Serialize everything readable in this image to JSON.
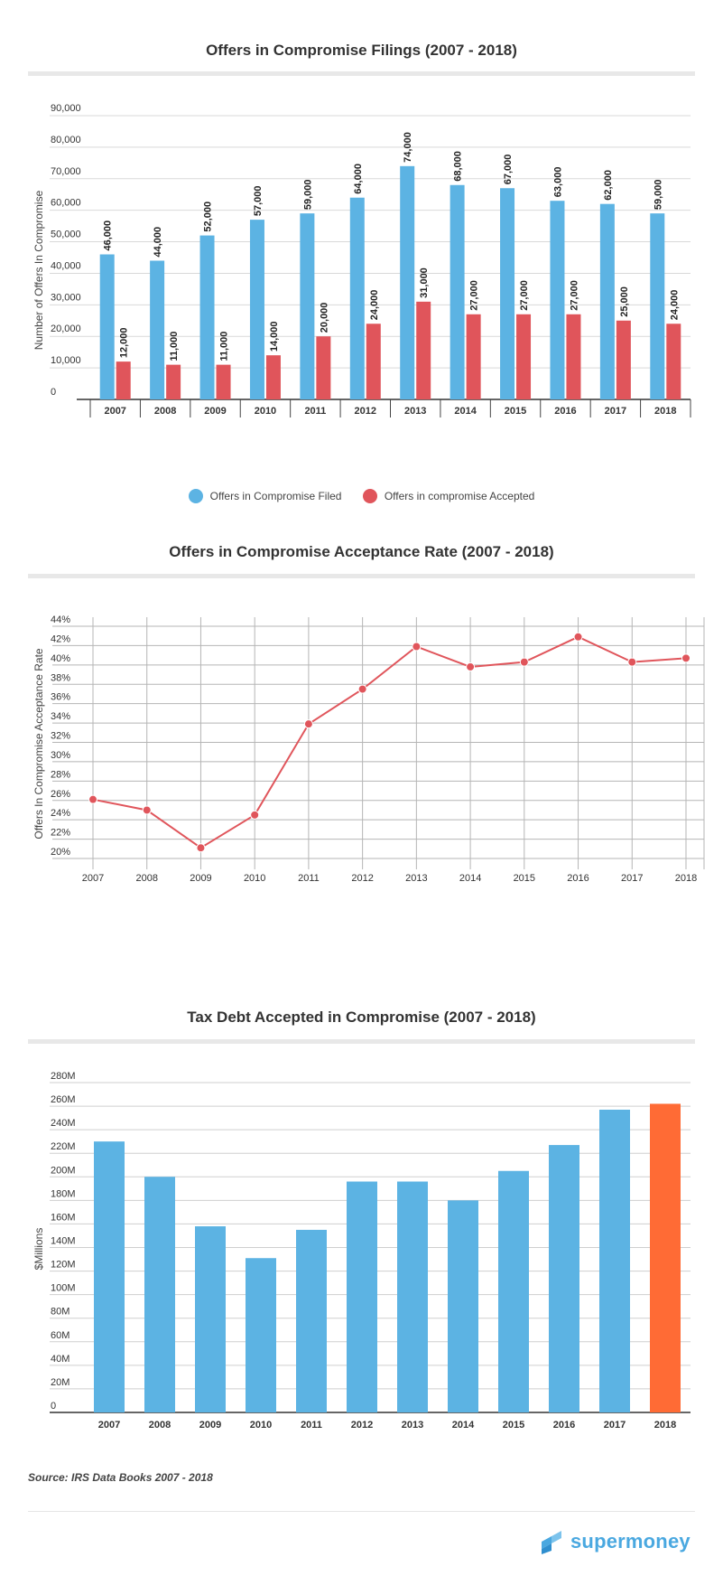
{
  "titles": {
    "filings": "Offers in Compromise Filings (2007 - 2018)",
    "rate": "Offers in Compromise Acceptance Rate (2007 - 2018)",
    "debt": "Tax Debt Accepted in Compromise (2007 - 2018)"
  },
  "legend": {
    "filed": "Offers in Compromise Filed",
    "accepted": "Offers in compromise Accepted"
  },
  "source": "Source: IRS Data Books 2007 - 2018",
  "logo": {
    "text": "supermoney"
  },
  "colors": {
    "blue": "#5cb3e3",
    "red": "#e0555b",
    "orange": "#ff6b35",
    "line": "#e0555b",
    "grid": "#b5b5b5"
  },
  "chart_data": [
    {
      "type": "bar",
      "title": "Offers in Compromise Filings (2007 - 2018)",
      "ylabel": "Number of Offers In Compromise",
      "categories": [
        "2007",
        "2008",
        "2009",
        "2010",
        "2011",
        "2012",
        "2013",
        "2014",
        "2015",
        "2016",
        "2017",
        "2018"
      ],
      "series": [
        {
          "name": "Offers in Compromise Filed",
          "values": [
            46000,
            44000,
            52000,
            57000,
            59000,
            64000,
            74000,
            68000,
            67000,
            63000,
            62000,
            59000
          ],
          "labels": [
            "46,000",
            "44,000",
            "52,000",
            "57,000",
            "59,000",
            "64,000",
            "74,000",
            "68,000",
            "67,000",
            "63,000",
            "62,000",
            "59,000"
          ]
        },
        {
          "name": "Offers in compromise Accepted",
          "values": [
            12000,
            11000,
            11000,
            14000,
            20000,
            24000,
            31000,
            27000,
            27000,
            27000,
            25000,
            24000
          ],
          "labels": [
            "12,000",
            "11,000",
            "11,000",
            "14,000",
            "20,000",
            "24,000",
            "31,000",
            "27,000",
            "27,000",
            "27,000",
            "25,000",
            "24,000"
          ]
        }
      ],
      "yticks": [
        "0",
        "10,000",
        "20,000",
        "30,000",
        "40,000",
        "50,000",
        "60,000",
        "70,000",
        "80,000",
        "90,000"
      ],
      "ylim": [
        0,
        90000
      ],
      "legend_position": "bottom"
    },
    {
      "type": "line",
      "title": "Offers in Compromise Acceptance Rate (2007 - 2018)",
      "ylabel": "Offers In Compromise Acceptance Rate",
      "categories": [
        "2007",
        "2008",
        "2009",
        "2010",
        "2011",
        "2012",
        "2013",
        "2014",
        "2015",
        "2016",
        "2017",
        "2018"
      ],
      "values": [
        26.1,
        25.0,
        21.1,
        24.5,
        33.9,
        37.5,
        41.9,
        39.8,
        40.3,
        42.9,
        40.3,
        40.7
      ],
      "yticks": [
        "20%",
        "22%",
        "24%",
        "26%",
        "28%",
        "30%",
        "32%",
        "34%",
        "36%",
        "38%",
        "40%",
        "42%",
        "44%"
      ],
      "ylim": [
        20,
        44
      ],
      "grid": true
    },
    {
      "type": "bar",
      "title": "Tax Debt Accepted in Compromise (2007 - 2018)",
      "ylabel": "$Millions",
      "categories": [
        "2007",
        "2008",
        "2009",
        "2010",
        "2011",
        "2012",
        "2013",
        "2014",
        "2015",
        "2016",
        "2017",
        "2018"
      ],
      "values": [
        230,
        200,
        158,
        131,
        155,
        196,
        196,
        180,
        205,
        227,
        257,
        262
      ],
      "yticks": [
        "0",
        "20M",
        "40M",
        "60M",
        "80M",
        "100M",
        "120M",
        "140M",
        "160M",
        "180M",
        "200M",
        "220M",
        "240M",
        "260M",
        "280M"
      ],
      "ylim": [
        0,
        280
      ],
      "highlight": "2018"
    }
  ]
}
